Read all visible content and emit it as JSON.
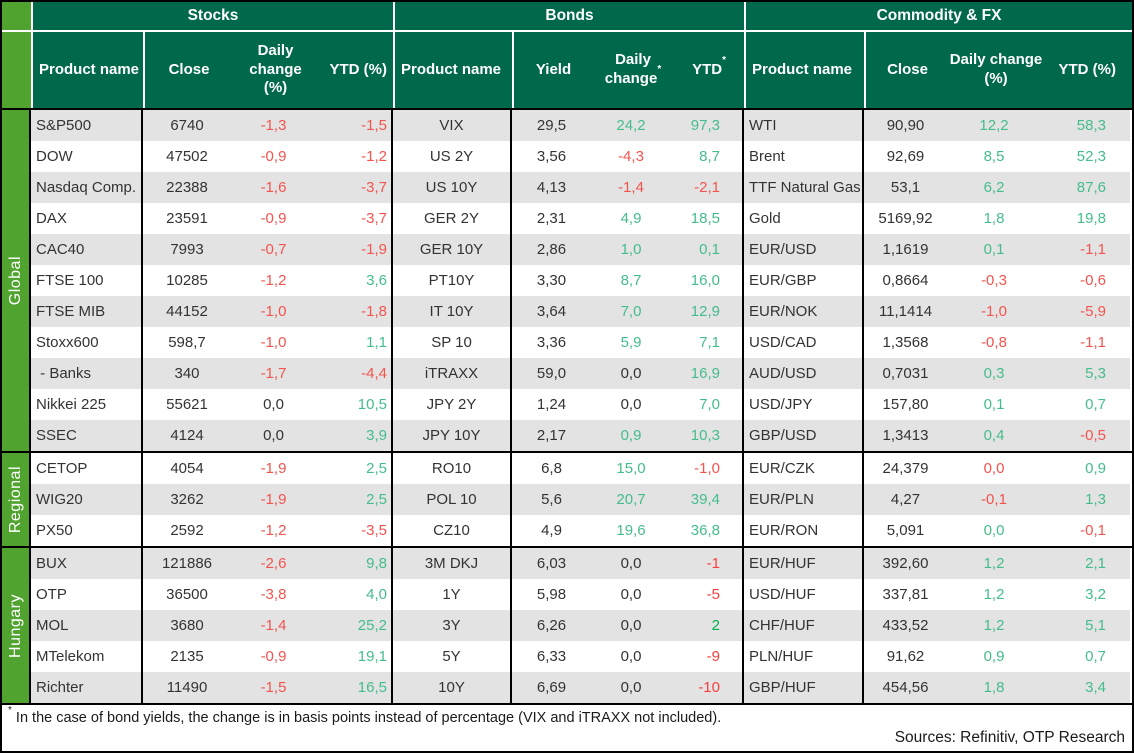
{
  "table": {
    "theme": {
      "header_green": "#00694b",
      "sidebar_green": "#4fa32e",
      "stripe_gray": "#e3e3e3",
      "text_ink": "#333333"
    },
    "colors": {
      "neg": "#f2544f",
      "pos": "#45bd8a",
      "neu": "#333333",
      "pos2": "#00b050",
      "neg2": "#fd3e3e"
    },
    "sections": [
      {
        "id": "stocks",
        "title": "Stocks",
        "columns": [
          {
            "label": "Product name"
          },
          {
            "label": "Close"
          },
          {
            "label": "Daily change (%)"
          },
          {
            "label": "YTD (%)"
          }
        ]
      },
      {
        "id": "bonds",
        "title": "Bonds",
        "columns": [
          {
            "label": "Product name"
          },
          {
            "label": "Yield"
          },
          {
            "label": "Daily change",
            "sup": "*"
          },
          {
            "label": "YTD",
            "sup": "*"
          }
        ]
      },
      {
        "id": "fx",
        "title": "Commodity & FX",
        "columns": [
          {
            "label": "Product name"
          },
          {
            "label": "Close"
          },
          {
            "label": "Daily change (%)"
          },
          {
            "label": "YTD (%)"
          }
        ]
      }
    ],
    "groups": [
      {
        "label": "Global",
        "rows": [
          {
            "stocks": [
              "S&P500",
              "6740",
              "-1,3",
              "neg",
              "-1,5",
              "neg"
            ],
            "bonds": [
              "VIX",
              "29,5",
              "24,2",
              "pos",
              "97,3",
              "pos"
            ],
            "fx": [
              "WTI",
              "90,90",
              "12,2",
              "pos",
              "58,3",
              "pos"
            ]
          },
          {
            "stocks": [
              "DOW",
              "47502",
              "-0,9",
              "neg",
              "-1,2",
              "neg"
            ],
            "bonds": [
              "US 2Y",
              "3,56",
              "-4,3",
              "neg",
              "8,7",
              "pos"
            ],
            "fx": [
              "Brent",
              "92,69",
              "8,5",
              "pos",
              "52,3",
              "pos"
            ]
          },
          {
            "stocks": [
              "Nasdaq Comp.",
              "22388",
              "-1,6",
              "neg",
              "-3,7",
              "neg"
            ],
            "bonds": [
              "US 10Y",
              "4,13",
              "-1,4",
              "neg",
              "-2,1",
              "neg"
            ],
            "fx": [
              "TTF Natural Gas",
              "53,1",
              "6,2",
              "pos",
              "87,6",
              "pos"
            ]
          },
          {
            "stocks": [
              "DAX",
              "23591",
              "-0,9",
              "neg",
              "-3,7",
              "neg"
            ],
            "bonds": [
              "GER 2Y",
              "2,31",
              "4,9",
              "pos",
              "18,5",
              "pos"
            ],
            "fx": [
              "Gold",
              "5169,92",
              "1,8",
              "pos",
              "19,8",
              "pos"
            ]
          },
          {
            "stocks": [
              "CAC40",
              "7993",
              "-0,7",
              "neg",
              "-1,9",
              "neg"
            ],
            "bonds": [
              "GER 10Y",
              "2,86",
              "1,0",
              "pos",
              "0,1",
              "pos"
            ],
            "fx": [
              "EUR/USD",
              "1,1619",
              "0,1",
              "pos",
              "-1,1",
              "neg"
            ]
          },
          {
            "stocks": [
              "FTSE 100",
              "10285",
              "-1,2",
              "neg",
              "3,6",
              "pos"
            ],
            "bonds": [
              "PT10Y",
              "3,30",
              "8,7",
              "pos",
              "16,0",
              "pos"
            ],
            "fx": [
              "EUR/GBP",
              "0,8664",
              "-0,3",
              "neg",
              "-0,6",
              "neg"
            ]
          },
          {
            "stocks": [
              "FTSE MIB",
              "44152",
              "-1,0",
              "neg",
              "-1,8",
              "neg"
            ],
            "bonds": [
              "IT 10Y",
              "3,64",
              "7,0",
              "pos",
              "12,9",
              "pos"
            ],
            "fx": [
              "EUR/NOK",
              "11,1414",
              "-1,0",
              "neg",
              "-5,9",
              "neg"
            ]
          },
          {
            "stocks": [
              "Stoxx600",
              "598,7",
              "-1,0",
              "neg",
              "1,1",
              "pos"
            ],
            "bonds": [
              "SP 10",
              "3,36",
              "5,9",
              "pos",
              "7,1",
              "pos"
            ],
            "fx": [
              "USD/CAD",
              "1,3568",
              "-0,8",
              "neg",
              "-1,1",
              "neg"
            ]
          },
          {
            "stocks": [
              " - Banks",
              "340",
              "-1,7",
              "neg",
              "-4,4",
              "neg"
            ],
            "bonds": [
              "iTRAXX",
              "59,0",
              "0,0",
              "neu",
              "16,9",
              "pos"
            ],
            "fx": [
              "AUD/USD",
              "0,7031",
              "0,3",
              "pos",
              "5,3",
              "pos"
            ]
          },
          {
            "stocks": [
              "Nikkei 225",
              "55621",
              "0,0",
              "neu",
              "10,5",
              "pos"
            ],
            "bonds": [
              "JPY 2Y",
              "1,24",
              "0,0",
              "neu",
              "7,0",
              "pos"
            ],
            "fx": [
              "USD/JPY",
              "157,80",
              "0,1",
              "pos",
              "0,7",
              "pos"
            ]
          },
          {
            "stocks": [
              "SSEC",
              "4124",
              "0,0",
              "neu",
              "3,9",
              "pos"
            ],
            "bonds": [
              "JPY 10Y",
              "2,17",
              "0,9",
              "pos",
              "10,3",
              "pos"
            ],
            "fx": [
              "GBP/USD",
              "1,3413",
              "0,4",
              "pos",
              "-0,5",
              "neg"
            ]
          }
        ]
      },
      {
        "label": "Regional",
        "rows": [
          {
            "stocks": [
              "CETOP",
              "4054",
              "-1,9",
              "neg",
              "2,5",
              "pos"
            ],
            "bonds": [
              "RO10",
              "6,8",
              "15,0",
              "pos",
              "-1,0",
              "neg"
            ],
            "fx": [
              "EUR/CZK",
              "24,379",
              "0,0",
              "neg",
              "0,9",
              "pos"
            ]
          },
          {
            "stocks": [
              "WIG20",
              "3262",
              "-1,9",
              "neg",
              "2,5",
              "pos"
            ],
            "bonds": [
              "POL 10",
              "5,6",
              "20,7",
              "pos",
              "39,4",
              "pos"
            ],
            "fx": [
              "EUR/PLN",
              "4,27",
              "-0,1",
              "neg",
              "1,3",
              "pos"
            ]
          },
          {
            "stocks": [
              "PX50",
              "2592",
              "-1,2",
              "neg",
              "-3,5",
              "neg"
            ],
            "bonds": [
              "CZ10",
              "4,9",
              "19,6",
              "pos",
              "36,8",
              "pos"
            ],
            "fx": [
              "EUR/RON",
              "5,091",
              "0,0",
              "pos",
              "-0,1",
              "neg"
            ]
          }
        ]
      },
      {
        "label": "Hungary",
        "rows": [
          {
            "stocks": [
              "BUX",
              "121886",
              "-2,6",
              "neg",
              "9,8",
              "pos"
            ],
            "bonds": [
              "3M DKJ",
              "6,03",
              "0,0",
              "neu",
              "-1",
              "neg2"
            ],
            "fx": [
              "EUR/HUF",
              "392,60",
              "1,2",
              "pos",
              "2,1",
              "pos"
            ]
          },
          {
            "stocks": [
              "OTP",
              "36500",
              "-3,8",
              "neg",
              "4,0",
              "pos"
            ],
            "bonds": [
              "1Y",
              "5,98",
              "0,0",
              "neu",
              "-5",
              "neg2"
            ],
            "fx": [
              "USD/HUF",
              "337,81",
              "1,2",
              "pos",
              "3,2",
              "pos"
            ]
          },
          {
            "stocks": [
              "MOL",
              "3680",
              "-1,4",
              "neg",
              "25,2",
              "pos"
            ],
            "bonds": [
              "3Y",
              "6,26",
              "0,0",
              "neu",
              "2",
              "pos2"
            ],
            "fx": [
              "CHF/HUF",
              "433,52",
              "1,2",
              "pos",
              "5,1",
              "pos"
            ]
          },
          {
            "stocks": [
              "MTelekom",
              "2135",
              "-0,9",
              "neg",
              "19,1",
              "pos"
            ],
            "bonds": [
              "5Y",
              "6,33",
              "0,0",
              "neu",
              "-9",
              "neg2"
            ],
            "fx": [
              "PLN/HUF",
              "91,62",
              "0,9",
              "pos",
              "0,7",
              "pos"
            ]
          },
          {
            "stocks": [
              "Richter",
              "11490",
              "-1,5",
              "neg",
              "16,5",
              "pos"
            ],
            "bonds": [
              "10Y",
              "6,69",
              "0,0",
              "neu",
              "-10",
              "neg2"
            ],
            "fx": [
              "GBP/HUF",
              "454,56",
              "1,8",
              "pos",
              "3,4",
              "pos"
            ]
          }
        ]
      }
    ]
  },
  "footer": {
    "footnote_mark": "*",
    "footnote": " In the case of bond yields, the change is in basis points instead of percentage (VIX and iTRAXX not included).",
    "sources": "Sources: Refinitiv, OTP Research"
  }
}
